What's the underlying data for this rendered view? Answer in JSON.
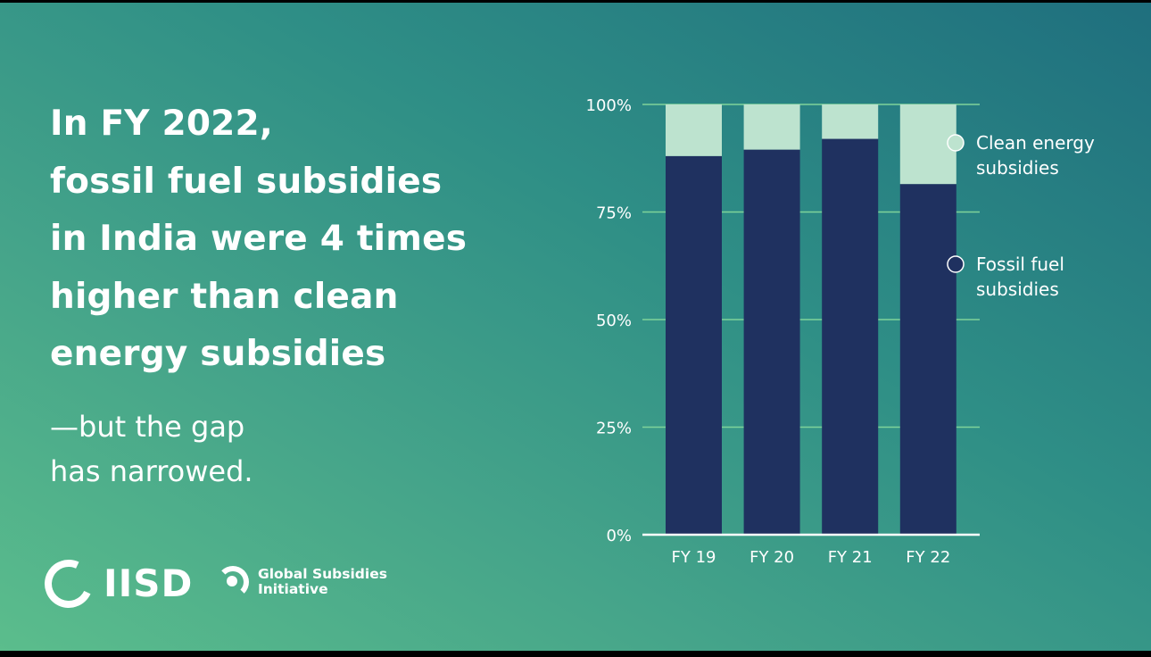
{
  "headline": [
    "In FY 2022,",
    "fossil fuel subsidies",
    "in India were 4 times",
    "higher than clean",
    "energy subsidies"
  ],
  "subline": [
    "—but the gap",
    "has narrowed."
  ],
  "logos": {
    "iisd": "IISD",
    "gsi_line1": "Global Subsidies",
    "gsi_line2": "Initiative"
  },
  "colors": {
    "fossil": "#1f3160",
    "clean": "#bde3cf",
    "grid": "#7fd39a",
    "axis": "#ffffff"
  },
  "chart_data": {
    "type": "bar",
    "stacked": true,
    "categories": [
      "FY 19",
      "FY 20",
      "FY 21",
      "FY 22"
    ],
    "series": [
      {
        "name": "Fossil fuel subsidies",
        "values": [
          88,
          89.5,
          92,
          81.5
        ]
      },
      {
        "name": "Clean energy subsidies",
        "values": [
          12,
          10.5,
          8,
          18.5
        ]
      }
    ],
    "yticks": [
      "0%",
      "25%",
      "50%",
      "75%",
      "100%"
    ],
    "ylim": [
      0,
      100
    ],
    "legend": [
      {
        "series": "Clean energy subsidies",
        "lines": [
          "Clean energy",
          "subsidies"
        ]
      },
      {
        "series": "Fossil fuel subsidies",
        "lines": [
          "Fossil fuel",
          "subsidies"
        ]
      }
    ],
    "legend_position": "right"
  }
}
